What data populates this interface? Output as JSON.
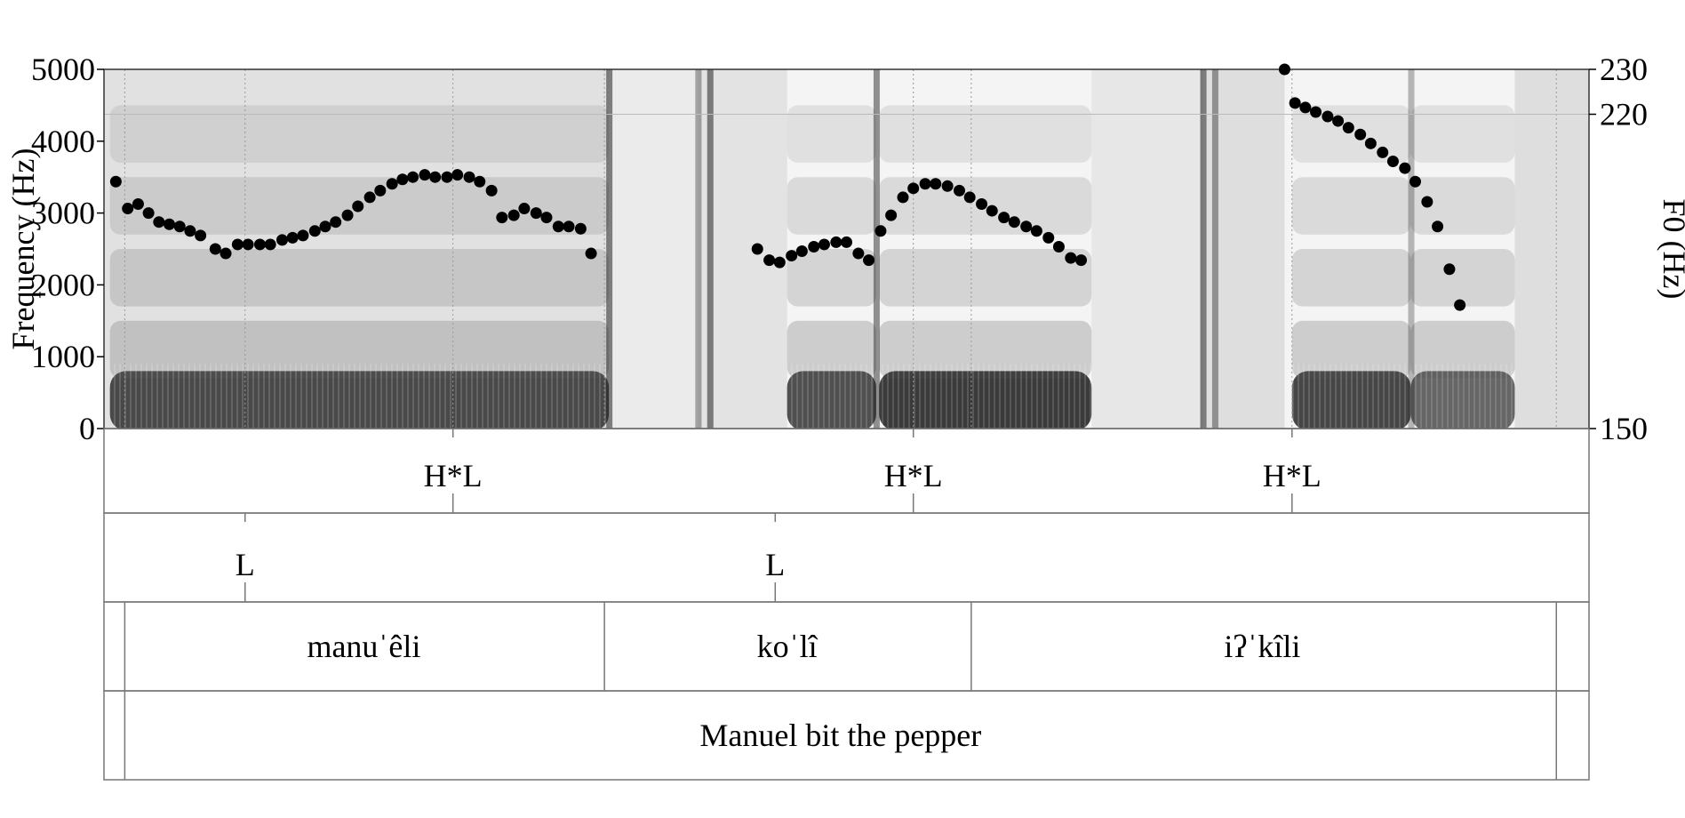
{
  "chart_data": {
    "type": "scatter",
    "title": "",
    "spectrogram": {
      "ylabel": "Frequency (Hz)",
      "ylim": [
        0,
        5000
      ],
      "yticks": [
        "5000",
        "4000",
        "3000",
        "2000",
        "1000",
        "0"
      ],
      "ytick_values": [
        5000,
        4000,
        3000,
        2000,
        1000,
        0
      ],
      "colormap": "grayscale"
    },
    "pitch": {
      "ylabel": "F0 (Hz)",
      "ylim": [
        150,
        230
      ],
      "yticks": [
        "230",
        "220",
        "150"
      ],
      "ytick_values": [
        230,
        220,
        150
      ],
      "marker_color": "#000000",
      "x_range": [
        0,
        100
      ],
      "series": [
        {
          "points": [
            [
              0.8,
              205
            ],
            [
              1.6,
              199
            ],
            [
              2.3,
              200
            ],
            [
              3.0,
              198
            ],
            [
              3.7,
              196
            ],
            [
              4.4,
              195.5
            ],
            [
              5.1,
              195
            ],
            [
              5.8,
              194
            ],
            [
              6.5,
              193
            ],
            [
              7.5,
              190
            ],
            [
              8.2,
              189
            ],
            [
              9.0,
              191
            ],
            [
              9.7,
              191
            ],
            [
              10.5,
              191
            ],
            [
              11.2,
              191
            ],
            [
              12.0,
              192
            ],
            [
              12.7,
              192.5
            ],
            [
              13.4,
              193
            ],
            [
              14.2,
              194
            ],
            [
              14.9,
              195
            ],
            [
              15.6,
              196
            ],
            [
              16.4,
              197.5
            ],
            [
              17.1,
              199.5
            ],
            [
              17.9,
              201.5
            ],
            [
              18.6,
              203
            ],
            [
              19.4,
              204.5
            ],
            [
              20.1,
              205.5
            ],
            [
              20.8,
              206
            ],
            [
              21.6,
              206.5
            ],
            [
              22.3,
              206
            ],
            [
              23.1,
              206
            ],
            [
              23.8,
              206.5
            ],
            [
              24.6,
              206
            ],
            [
              25.3,
              205
            ],
            [
              26.1,
              203
            ],
            [
              26.8,
              197
            ],
            [
              27.6,
              197.5
            ],
            [
              28.3,
              199
            ],
            [
              29.1,
              198
            ],
            [
              29.8,
              197
            ],
            [
              30.6,
              195
            ],
            [
              31.3,
              195
            ],
            [
              32.1,
              194.5
            ],
            [
              32.8,
              189
            ]
          ]
        },
        {
          "points": [
            [
              44.0,
              190
            ],
            [
              44.8,
              187.5
            ],
            [
              45.5,
              187
            ],
            [
              46.3,
              188.5
            ],
            [
              47.0,
              189.5
            ],
            [
              47.8,
              190.5
            ],
            [
              48.5,
              191
            ],
            [
              49.3,
              191.5
            ],
            [
              50.0,
              191.5
            ],
            [
              50.8,
              189
            ],
            [
              51.5,
              187.5
            ],
            [
              52.3,
              194
            ],
            [
              53.0,
              197.5
            ],
            [
              53.8,
              201.5
            ],
            [
              54.5,
              203.5
            ],
            [
              55.3,
              204.5
            ],
            [
              56.0,
              204.5
            ],
            [
              56.8,
              204
            ],
            [
              57.6,
              203
            ],
            [
              58.3,
              201.5
            ],
            [
              59.1,
              200
            ],
            [
              59.8,
              198.5
            ],
            [
              60.6,
              197
            ],
            [
              61.3,
              196
            ],
            [
              62.1,
              195
            ],
            [
              62.8,
              194
            ],
            [
              63.6,
              192.5
            ],
            [
              64.3,
              190.5
            ],
            [
              65.1,
              188
            ],
            [
              65.8,
              187.5
            ]
          ]
        },
        {
          "points": [
            [
              79.5,
              230
            ],
            [
              80.2,
              222.5
            ],
            [
              80.9,
              221.5
            ],
            [
              81.6,
              220.5
            ],
            [
              82.4,
              219.5
            ],
            [
              83.1,
              218.5
            ],
            [
              83.8,
              217
            ],
            [
              84.6,
              215.5
            ],
            [
              85.3,
              213.5
            ],
            [
              86.1,
              211.5
            ],
            [
              86.8,
              209.5
            ],
            [
              87.6,
              208
            ],
            [
              88.3,
              205
            ],
            [
              89.1,
              200.5
            ],
            [
              89.8,
              195
            ],
            [
              90.6,
              185.5
            ],
            [
              91.3,
              177.5
            ]
          ]
        }
      ]
    },
    "tiers": {
      "tone_tier": {
        "labels": [
          {
            "text": "H*L",
            "t": 23.5
          },
          {
            "text": "H*L",
            "t": 54.5
          },
          {
            "text": "H*L",
            "t": 80.0
          }
        ]
      },
      "boundary_tier": {
        "labels": [
          {
            "text": "L",
            "t": 9.5
          },
          {
            "text": "L",
            "t": 45.2
          }
        ]
      },
      "word_tier": {
        "boundaries": [
          1.4,
          33.7,
          58.4,
          97.8
        ],
        "labels": [
          {
            "text": "manuˈêli",
            "t": 17.5
          },
          {
            "text": "koˈlî",
            "t": 46.0
          },
          {
            "text": "iʔˈkîli",
            "t": 78.0
          }
        ]
      },
      "sentence_tier": {
        "boundaries": [
          1.4,
          97.8
        ],
        "labels": [
          {
            "text": "Manuel bit the pepper",
            "t": 49.6
          }
        ]
      }
    }
  }
}
